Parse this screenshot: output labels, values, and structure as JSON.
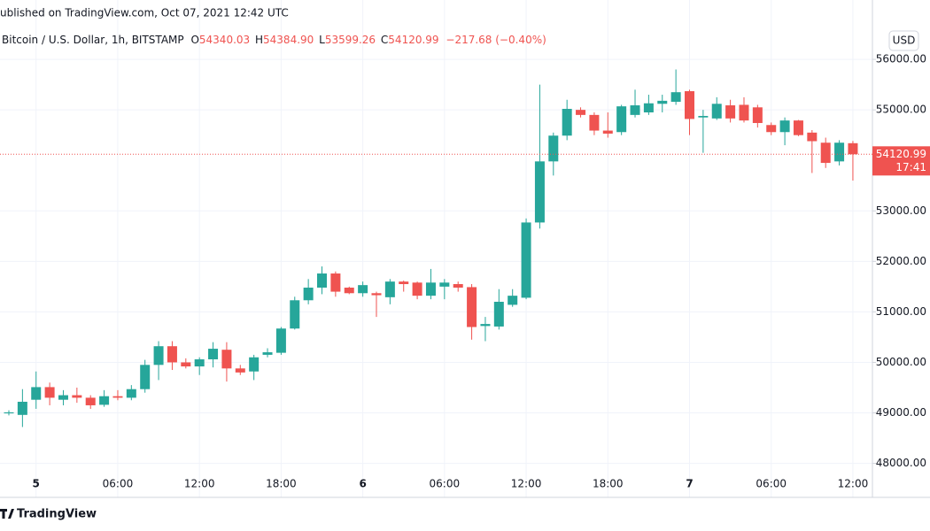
{
  "header": {
    "published": "ublished on TradingView.com, Oct 07, 2021 12:42 UTC",
    "symbol": "Bitcoin / U.S. Dollar, 1h, BITSTAMP",
    "o_label": "O",
    "o_value": "54340.03",
    "h_label": "H",
    "h_value": "54384.90",
    "l_label": "L",
    "l_value": "53599.26",
    "c_label": "C",
    "c_value": "54120.99",
    "change": "−217.68 (−0.40%)"
  },
  "currency": "USD",
  "countdown": "17:41",
  "footer": "TradingView",
  "chart_data": {
    "type": "candlestick",
    "categories": [
      null,
      null,
      "5",
      null,
      null,
      null,
      null,
      null,
      "06:00",
      null,
      null,
      null,
      null,
      null,
      "12:00",
      null,
      null,
      null,
      null,
      null,
      "18:00",
      null,
      null,
      null,
      null,
      null,
      "6",
      null,
      null,
      null,
      null,
      null,
      "06:00",
      null,
      null,
      null,
      null,
      null,
      "12:00",
      null,
      null,
      null,
      null,
      null,
      "18:00",
      null,
      null,
      null,
      null,
      null,
      "7",
      null,
      null,
      null,
      null,
      null,
      "06:00",
      null,
      null,
      null,
      null,
      null,
      "12:00"
    ],
    "open": [
      48990,
      48960,
      49260,
      49510,
      49260,
      49350,
      49300,
      49160,
      49330,
      49300,
      49470,
      49950,
      50320,
      50000,
      49920,
      50060,
      50250,
      49880,
      49820,
      50150,
      50190,
      50670,
      51230,
      51480,
      51760,
      51480,
      51370,
      51370,
      51290,
      51600,
      51580,
      51320,
      51500,
      51550,
      51490,
      50720,
      50710,
      51140,
      51280,
      52770,
      53980,
      54490,
      55000,
      54900,
      54590,
      54560,
      54900,
      54950,
      55120,
      55160,
      55370,
      54850,
      54830,
      55090,
      55100,
      55050,
      54700,
      54560,
      54790,
      54550,
      54350,
      53980,
      54340.03
    ],
    "high": [
      49050,
      49470,
      49820,
      49600,
      49450,
      49500,
      49350,
      49450,
      49450,
      49550,
      50050,
      50420,
      50420,
      50080,
      50100,
      50400,
      50400,
      49950,
      50150,
      50280,
      50700,
      51300,
      51650,
      51900,
      51800,
      51500,
      51600,
      51400,
      51650,
      51620,
      51600,
      51850,
      51650,
      51600,
      51550,
      50900,
      51450,
      51450,
      52850,
      55500,
      54550,
      55200,
      55050,
      54950,
      54950,
      55100,
      55400,
      55300,
      55300,
      55800,
      55400,
      55000,
      55250,
      55200,
      55250,
      55100,
      54750,
      54850,
      54800,
      54600,
      54450,
      54400,
      54384.9
    ],
    "low": [
      48950,
      48720,
      49080,
      49150,
      49150,
      49200,
      49080,
      49120,
      49250,
      49250,
      49400,
      49650,
      49850,
      49880,
      49750,
      49900,
      49620,
      49750,
      49650,
      50100,
      50150,
      50650,
      51150,
      51350,
      51300,
      51350,
      51300,
      50900,
      51150,
      51400,
      51250,
      51250,
      51250,
      51400,
      50450,
      50420,
      50650,
      51100,
      51250,
      52650,
      53700,
      54400,
      54850,
      54500,
      54450,
      54500,
      54850,
      54900,
      54950,
      55100,
      54500,
      54150,
      54800,
      54750,
      54750,
      54650,
      54500,
      54300,
      54480,
      53750,
      53850,
      53900,
      53599.26
    ],
    "close": [
      49010,
      49220,
      49510,
      49300,
      49350,
      49300,
      49150,
      49330,
      49300,
      49470,
      49950,
      50320,
      50000,
      49920,
      50060,
      50270,
      49880,
      49800,
      50100,
      50200,
      50670,
      51230,
      51480,
      51760,
      51400,
      51370,
      51530,
      51330,
      51600,
      51550,
      51320,
      51580,
      51580,
      51480,
      50700,
      50760,
      51200,
      51320,
      52770,
      53980,
      54490,
      55020,
      54900,
      54590,
      54530,
      55070,
      55090,
      55130,
      55180,
      55350,
      54820,
      54880,
      55120,
      54830,
      54790,
      54740,
      54560,
      54790,
      54500,
      54380,
      53950,
      54350,
      54120.99
    ],
    "up_color": "#26a69a",
    "down_color": "#ef5350",
    "ylim": [
      47800,
      56650
    ],
    "yticks": [
      {
        "value": 48000,
        "label": "48000.00"
      },
      {
        "value": 49000,
        "label": "49000.00"
      },
      {
        "value": 50000,
        "label": "50000.00"
      },
      {
        "value": 51000,
        "label": "51000.00"
      },
      {
        "value": 52000,
        "label": "52000.00"
      },
      {
        "value": 53000,
        "label": "53000.00"
      },
      {
        "value": 55000,
        "label": "55000.00"
      },
      {
        "value": 56000,
        "label": "56000.00"
      }
    ],
    "grid": true
  }
}
